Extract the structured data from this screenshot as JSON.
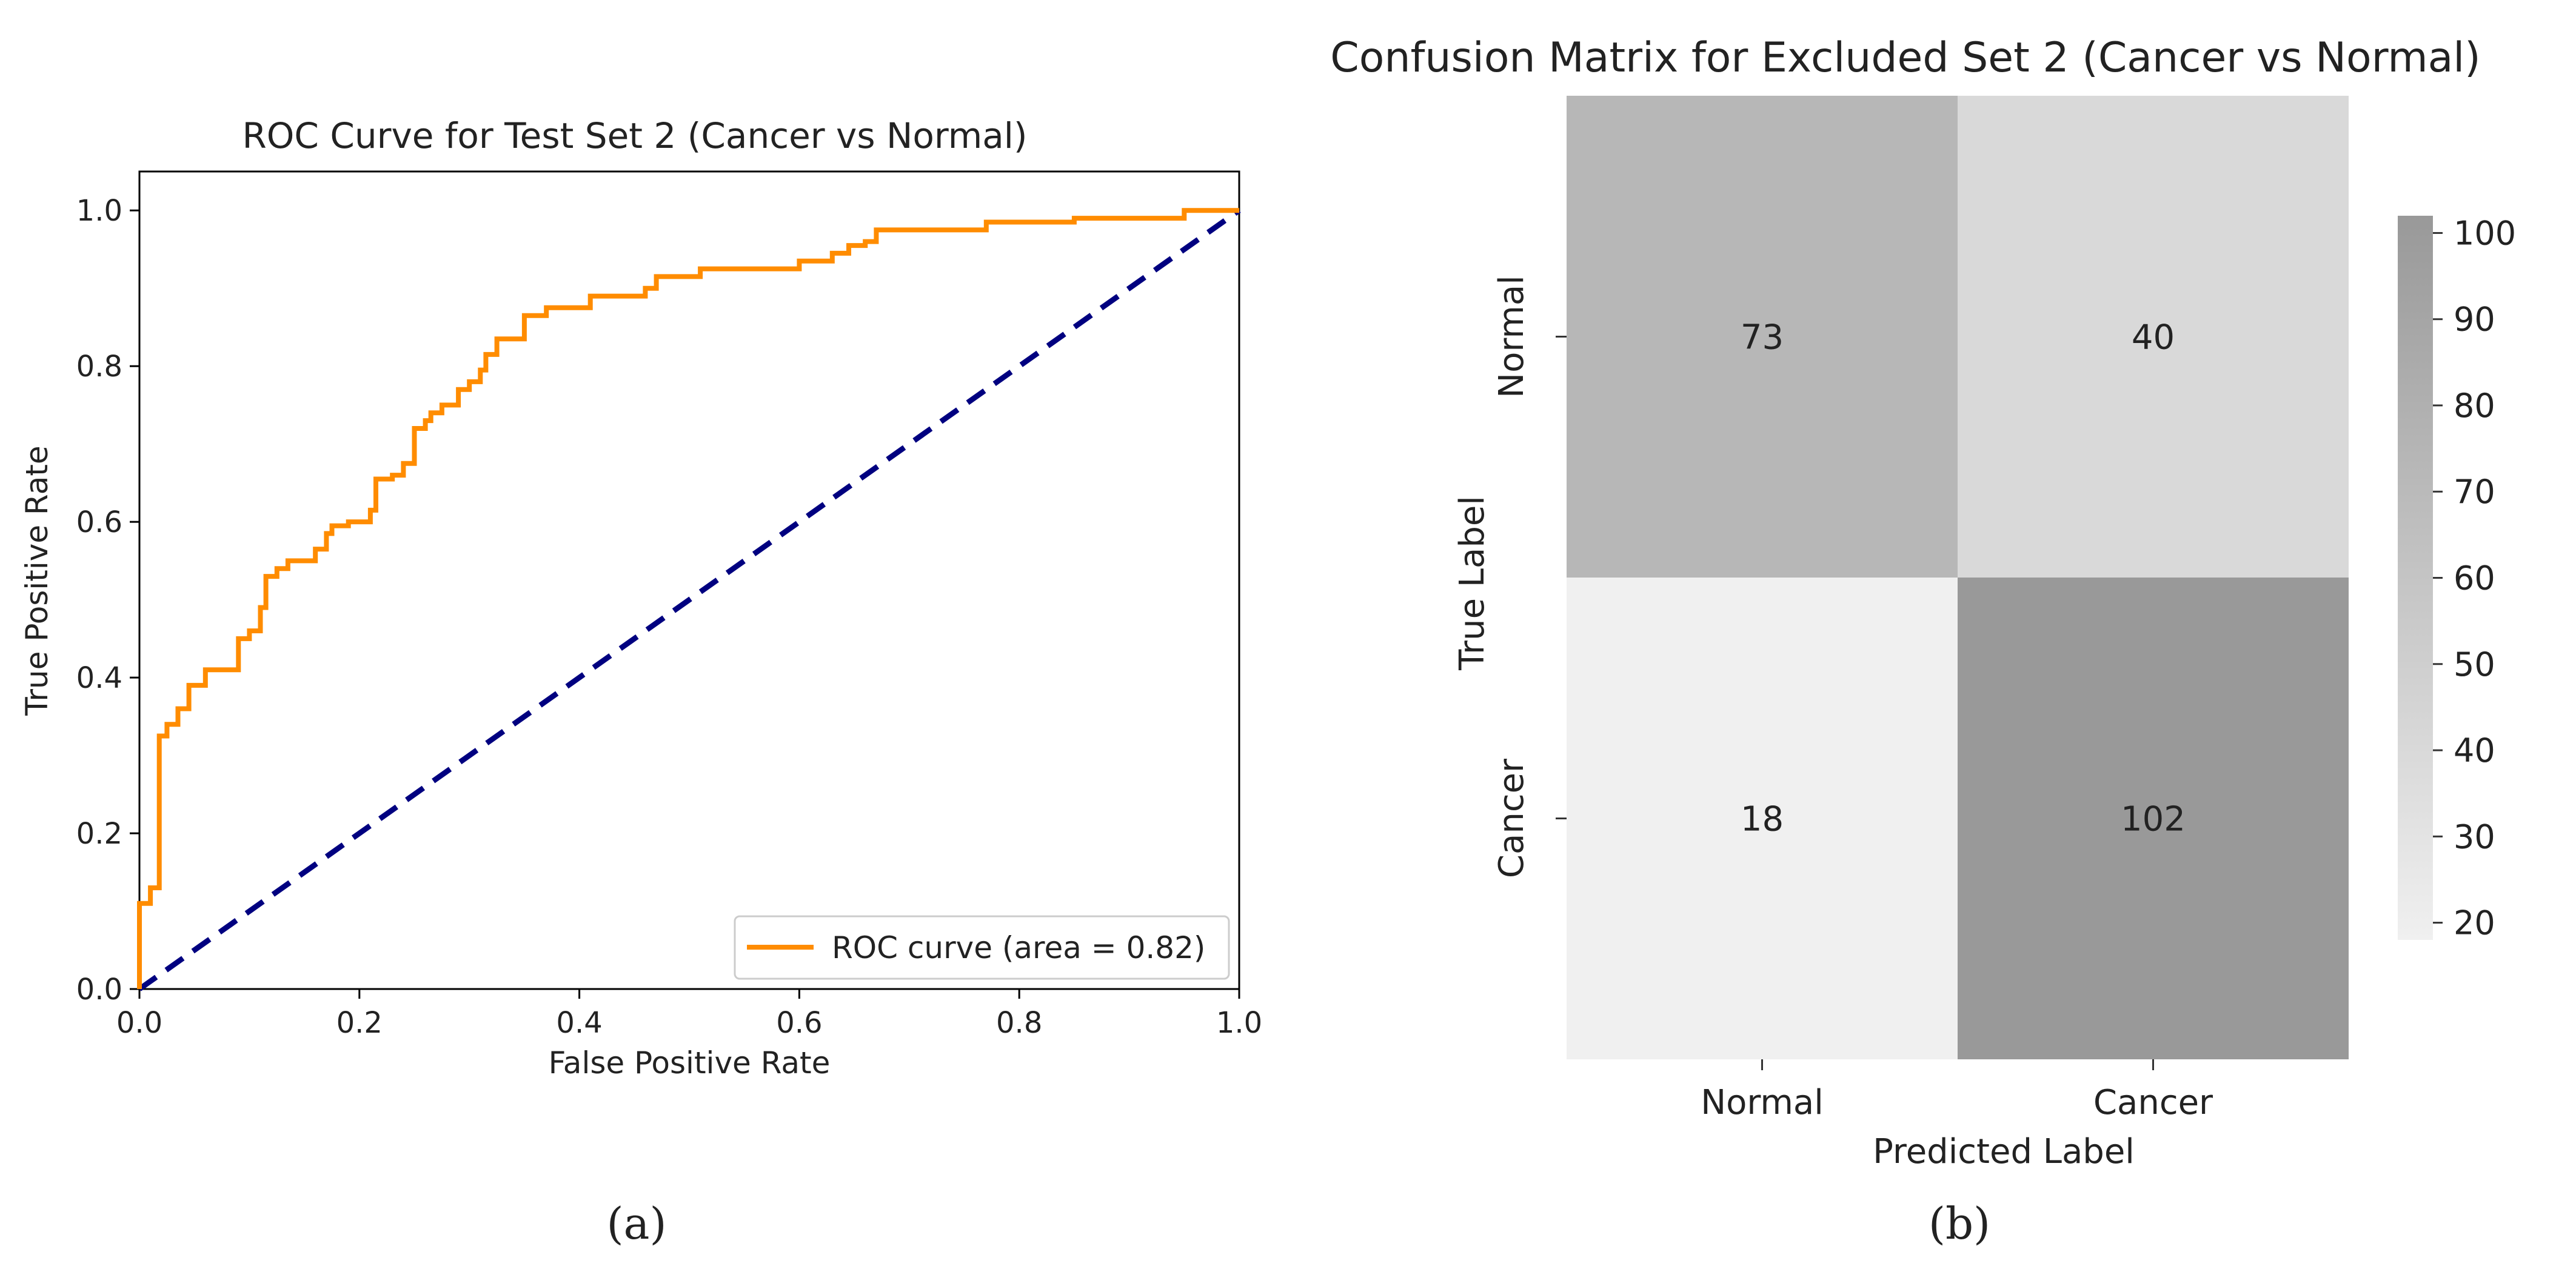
{
  "colors": {
    "roc_line": "#ff8c00",
    "diagonal": "#000080",
    "axis": "#000000",
    "cmap_low": "#f0f0f0",
    "cmap_high": "#999999"
  },
  "chart_data": [
    {
      "type": "line",
      "panel_label": "(a)",
      "title": "ROC Curve for Test Set 2 (Cancer vs Normal)",
      "xlabel": "False Positive Rate",
      "ylabel": "True Positive Rate",
      "xlim": [
        0.0,
        1.0
      ],
      "ylim": [
        0.0,
        1.05
      ],
      "xticks": [
        0.0,
        0.2,
        0.4,
        0.6,
        0.8,
        1.0
      ],
      "yticks": [
        0.0,
        0.2,
        0.4,
        0.6,
        0.8,
        1.0
      ],
      "xtick_labels": [
        "0.0",
        "0.2",
        "0.4",
        "0.6",
        "0.8",
        "1.0"
      ],
      "ytick_labels": [
        "0.0",
        "0.2",
        "0.4",
        "0.6",
        "0.8",
        "1.0"
      ],
      "legend": {
        "position": "lower-right",
        "entries": [
          "ROC curve (area = 0.82)"
        ]
      },
      "series": [
        {
          "name": "ROC curve (area = 0.82)",
          "style": "step",
          "x": [
            0.0,
            0.0,
            0.01,
            0.01,
            0.018,
            0.018,
            0.025,
            0.025,
            0.035,
            0.035,
            0.045,
            0.045,
            0.06,
            0.06,
            0.09,
            0.09,
            0.1,
            0.1,
            0.11,
            0.11,
            0.115,
            0.115,
            0.125,
            0.125,
            0.135,
            0.135,
            0.16,
            0.16,
            0.17,
            0.17,
            0.175,
            0.175,
            0.19,
            0.19,
            0.21,
            0.21,
            0.215,
            0.215,
            0.23,
            0.23,
            0.24,
            0.24,
            0.25,
            0.25,
            0.26,
            0.26,
            0.265,
            0.265,
            0.275,
            0.275,
            0.29,
            0.29,
            0.3,
            0.3,
            0.31,
            0.31,
            0.315,
            0.315,
            0.325,
            0.325,
            0.33,
            0.33,
            0.35,
            0.35,
            0.355,
            0.355,
            0.37,
            0.37,
            0.41,
            0.41,
            0.46,
            0.46,
            0.47,
            0.47,
            0.51,
            0.51,
            0.6,
            0.6,
            0.63,
            0.63,
            0.645,
            0.645,
            0.66,
            0.66,
            0.67,
            0.67,
            0.68,
            0.68,
            0.77,
            0.77,
            0.85,
            0.85,
            0.95,
            0.95,
            1.0
          ],
          "y": [
            0.0,
            0.11,
            0.11,
            0.13,
            0.13,
            0.325,
            0.325,
            0.34,
            0.34,
            0.36,
            0.36,
            0.39,
            0.39,
            0.41,
            0.41,
            0.45,
            0.45,
            0.46,
            0.46,
            0.49,
            0.49,
            0.53,
            0.53,
            0.54,
            0.54,
            0.55,
            0.55,
            0.565,
            0.565,
            0.585,
            0.585,
            0.595,
            0.595,
            0.6,
            0.6,
            0.615,
            0.615,
            0.655,
            0.655,
            0.66,
            0.66,
            0.675,
            0.675,
            0.72,
            0.72,
            0.73,
            0.73,
            0.74,
            0.74,
            0.75,
            0.75,
            0.77,
            0.77,
            0.78,
            0.78,
            0.795,
            0.795,
            0.815,
            0.815,
            0.835,
            0.835,
            0.835,
            0.835,
            0.865,
            0.865,
            0.865,
            0.865,
            0.875,
            0.875,
            0.89,
            0.89,
            0.9,
            0.9,
            0.915,
            0.915,
            0.925,
            0.925,
            0.935,
            0.935,
            0.945,
            0.945,
            0.955,
            0.955,
            0.96,
            0.96,
            0.975,
            0.975,
            0.975,
            0.975,
            0.985,
            0.985,
            0.99,
            0.99,
            1.0,
            1.0
          ]
        },
        {
          "name": "chance",
          "style": "dashed",
          "x": [
            0.0,
            1.0
          ],
          "y": [
            0.0,
            1.0
          ]
        }
      ]
    },
    {
      "type": "heatmap",
      "panel_label": "(b)",
      "title": "Confusion Matrix for Excluded Set 2 (Cancer vs Normal)",
      "xlabel": "Predicted Label",
      "ylabel": "True Label",
      "x_categories": [
        "Normal",
        "Cancer"
      ],
      "y_categories": [
        "Normal",
        "Cancer"
      ],
      "values": [
        [
          73,
          40
        ],
        [
          18,
          102
        ]
      ],
      "cell_labels": [
        [
          "73",
          "40"
        ],
        [
          "18",
          "102"
        ]
      ],
      "colorbar": {
        "vmin": 18,
        "vmax": 102,
        "ticks": [
          20,
          30,
          40,
          50,
          60,
          70,
          80,
          90,
          100
        ],
        "tick_labels": [
          "20",
          "30",
          "40",
          "50",
          "60",
          "70",
          "80",
          "90",
          "100"
        ]
      }
    }
  ]
}
